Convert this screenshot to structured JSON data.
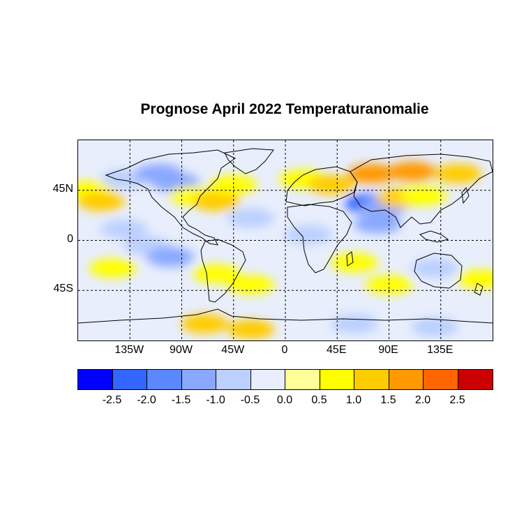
{
  "title": "Prognose April 2022 Temperaturanomalie",
  "map": {
    "lat_labels": [
      {
        "text": "45N",
        "lat": 45
      },
      {
        "text": "0",
        "lat": 0
      },
      {
        "text": "45S",
        "lat": -45
      }
    ],
    "lon_labels": [
      {
        "text": "135W",
        "lon": -135
      },
      {
        "text": "90W",
        "lon": -90
      },
      {
        "text": "45W",
        "lon": -45
      },
      {
        "text": "0",
        "lon": 0
      },
      {
        "text": "45E",
        "lon": 45
      },
      {
        "text": "90E",
        "lon": 90
      },
      {
        "text": "135E",
        "lon": 135
      }
    ],
    "lon_range": [
      -180,
      180
    ],
    "lat_range": [
      -90,
      90
    ],
    "grid": "dashed at 45 degree intervals",
    "anomalies": [
      {
        "lon": -170,
        "lat": 45,
        "value": 0.75
      },
      {
        "lon": -160,
        "lat": 35,
        "value": 1.25
      },
      {
        "lon": -140,
        "lat": 55,
        "value": -0.75
      },
      {
        "lon": -110,
        "lat": 60,
        "value": -1.25
      },
      {
        "lon": -95,
        "lat": 52,
        "value": -1.25
      },
      {
        "lon": -80,
        "lat": 40,
        "value": 0.75
      },
      {
        "lon": -60,
        "lat": 35,
        "value": 1.25
      },
      {
        "lon": -45,
        "lat": 50,
        "value": 0.75
      },
      {
        "lon": -30,
        "lat": 20,
        "value": -0.75
      },
      {
        "lon": -140,
        "lat": 10,
        "value": -0.75
      },
      {
        "lon": -120,
        "lat": -5,
        "value": -0.75
      },
      {
        "lon": -100,
        "lat": -15,
        "value": -1.25
      },
      {
        "lon": -150,
        "lat": -25,
        "value": 0.75
      },
      {
        "lon": -60,
        "lat": -30,
        "value": 0.75
      },
      {
        "lon": -30,
        "lat": -40,
        "value": 0.75
      },
      {
        "lon": 15,
        "lat": 55,
        "value": 0.75
      },
      {
        "lon": 40,
        "lat": 50,
        "value": 1.25
      },
      {
        "lon": 75,
        "lat": 60,
        "value": 1.75
      },
      {
        "lon": 110,
        "lat": 62,
        "value": 1.75
      },
      {
        "lon": 150,
        "lat": 60,
        "value": 1.25
      },
      {
        "lon": 72,
        "lat": 33,
        "value": -2.25
      },
      {
        "lon": 85,
        "lat": 30,
        "value": -1.25
      },
      {
        "lon": 100,
        "lat": 38,
        "value": 1.25
      },
      {
        "lon": 120,
        "lat": 40,
        "value": 0.75
      },
      {
        "lon": 80,
        "lat": 15,
        "value": -1.25
      },
      {
        "lon": 20,
        "lat": 5,
        "value": -0.75
      },
      {
        "lon": 60,
        "lat": -20,
        "value": 0.75
      },
      {
        "lon": 130,
        "lat": -25,
        "value": -0.75
      },
      {
        "lon": 170,
        "lat": -35,
        "value": 0.75
      },
      {
        "lon": 90,
        "lat": -40,
        "value": 0.75
      },
      {
        "lon": -70,
        "lat": -75,
        "value": 1.25
      },
      {
        "lon": -30,
        "lat": -80,
        "value": 1.25
      },
      {
        "lon": 60,
        "lat": -75,
        "value": -0.75
      },
      {
        "lon": 130,
        "lat": -78,
        "value": -0.75
      }
    ]
  },
  "colorbar": {
    "colors": [
      "#0000ff",
      "#3366ff",
      "#5b87ff",
      "#8aa8ff",
      "#bcd0ff",
      "#e8eefc",
      "#ffff99",
      "#ffff00",
      "#ffcc00",
      "#ff9900",
      "#ff6600",
      "#cc0000"
    ],
    "labels": [
      "-2.5",
      "-2.0",
      "-1.5",
      "-1.0",
      "-0.5",
      "0.0",
      "0.5",
      "1.0",
      "1.5",
      "2.0",
      "2.5"
    ]
  }
}
